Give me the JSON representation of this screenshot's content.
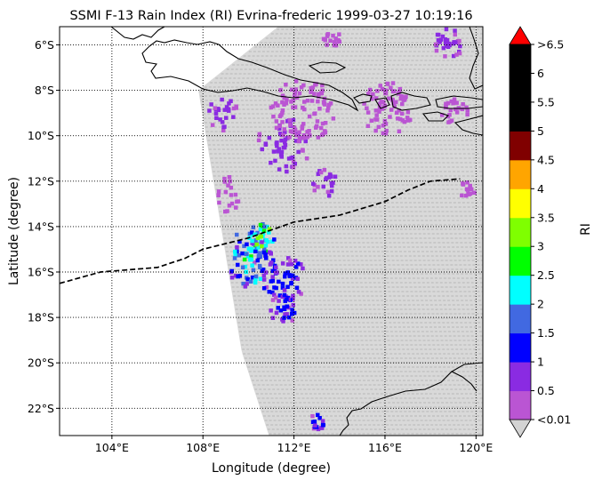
{
  "title": "SSMI F-13 Rain Index (RI) Evrina-frederic 1999-03-27 10:19:16",
  "xlabel": "Longitude (degree)",
  "ylabel": "Latitude (degree)",
  "colorbar": {
    "label": "RI",
    "levels": [
      "<0.01",
      "0.5",
      "1",
      "1.5",
      "2",
      "2.5",
      "3",
      "3.5",
      "4",
      "4.5",
      "5",
      "5.5",
      "6",
      ">6.5"
    ],
    "colors": [
      "#d3d3d3",
      "#ba55d3",
      "#8a2be2",
      "#0000ff",
      "#4169e1",
      "#00ffff",
      "#00ff00",
      "#7fff00",
      "#ffff00",
      "#ffa500",
      "#800000",
      "#000000",
      "#000000",
      "#000000",
      "#ff0000"
    ]
  },
  "map": {
    "lon_range": [
      101.7,
      120.3
    ],
    "lat_range": [
      -23.2,
      -5.2
    ],
    "xticks": [
      {
        "value": 104,
        "label": "104°E"
      },
      {
        "value": 108,
        "label": "108°E"
      },
      {
        "value": 112,
        "label": "112°E"
      },
      {
        "value": 116,
        "label": "116°E"
      },
      {
        "value": 120,
        "label": "120°E"
      }
    ],
    "yticks": [
      {
        "value": -6,
        "label": "6°S"
      },
      {
        "value": -8,
        "label": "8°S"
      },
      {
        "value": -10,
        "label": "10°S"
      },
      {
        "value": -12,
        "label": "12°S"
      },
      {
        "value": -14,
        "label": "14°S"
      },
      {
        "value": -16,
        "label": "16°S"
      },
      {
        "value": -18,
        "label": "18°S"
      },
      {
        "value": -20,
        "label": "20°S"
      },
      {
        "value": -22,
        "label": "22°S"
      }
    ],
    "gridlines": true,
    "storm_track": [
      [
        101.7,
        -16.5
      ],
      [
        103.5,
        -16.0
      ],
      [
        106.0,
        -15.8
      ],
      [
        107.2,
        -15.4
      ],
      [
        108.0,
        -15.0
      ],
      [
        110.0,
        -14.5
      ],
      [
        112.0,
        -13.8
      ],
      [
        114.0,
        -13.5
      ],
      [
        116.0,
        -12.9
      ],
      [
        117.0,
        -12.4
      ],
      [
        118.0,
        -12.0
      ],
      [
        119.3,
        -11.9
      ]
    ],
    "swath": {
      "top_left": [
        111.3,
        -5.2
      ],
      "top_right": [
        120.3,
        -5.2
      ],
      "bottom_left": [
        110.9,
        -23.2
      ],
      "bottom_right": [
        120.3,
        -23.2
      ],
      "upper_left": [
        107.8,
        -8.0
      ],
      "lower_left": [
        109.7,
        -19.5
      ]
    },
    "rain_clusters": [
      {
        "lon": 110.2,
        "lat": -14.6,
        "spread": 0.9,
        "level": 6
      },
      {
        "lon": 110.0,
        "lat": -15.5,
        "spread": 1.1,
        "level": 5
      },
      {
        "lon": 110.5,
        "lat": -14.4,
        "spread": 0.5,
        "level": 7
      },
      {
        "lon": 111.5,
        "lat": -16.2,
        "spread": 1.0,
        "level": 3
      },
      {
        "lon": 108.8,
        "lat": -9.0,
        "spread": 0.7,
        "level": 2
      },
      {
        "lon": 111.5,
        "lat": -10.3,
        "spread": 1.2,
        "level": 2
      },
      {
        "lon": 113.3,
        "lat": -12.0,
        "spread": 0.6,
        "level": 2
      },
      {
        "lon": 118.7,
        "lat": -5.8,
        "spread": 0.7,
        "level": 2
      },
      {
        "lon": 111.4,
        "lat": -17.6,
        "spread": 0.7,
        "level": 3
      },
      {
        "lon": 108.7,
        "lat": -12.5,
        "spread": 0.9,
        "level": 1
      },
      {
        "lon": 112.3,
        "lat": -8.8,
        "spread": 1.4,
        "level": 1
      },
      {
        "lon": 116.0,
        "lat": -8.7,
        "spread": 1.2,
        "level": 1
      },
      {
        "lon": 119.0,
        "lat": -8.9,
        "spread": 0.6,
        "level": 1
      },
      {
        "lon": 113.0,
        "lat": -22.5,
        "spread": 0.4,
        "level": 3
      },
      {
        "lon": 119.6,
        "lat": -12.3,
        "spread": 0.4,
        "level": 1
      },
      {
        "lon": 113.6,
        "lat": -5.6,
        "spread": 0.4,
        "level": 1
      }
    ]
  }
}
